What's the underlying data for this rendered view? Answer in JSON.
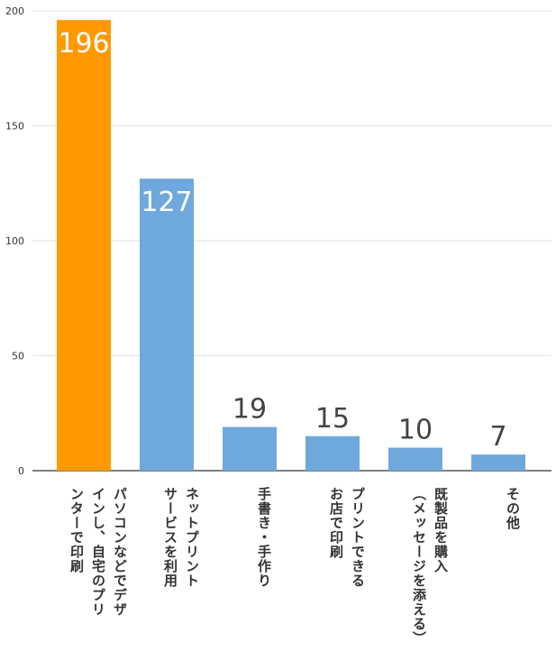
{
  "chart_data": {
    "type": "bar",
    "categories": [
      [
        "パソコンなどでデザ",
        "インし、自宅のプリ",
        "ンターで印刷"
      ],
      [
        "ネットプリント",
        "サービスを利用"
      ],
      [
        "手書き・手作り"
      ],
      [
        "プリントできる",
        "お店で印刷"
      ],
      [
        "既製品を購入",
        "（メッセージを添える）"
      ],
      [
        "その他"
      ]
    ],
    "values": [
      196,
      127,
      19,
      15,
      10,
      7
    ],
    "ylim": [
      0,
      200
    ],
    "yticks": [
      0,
      50,
      100,
      150,
      200
    ],
    "grid": true,
    "colors": [
      "#ff9900",
      "#6fa8dc",
      "#6fa8dc",
      "#6fa8dc",
      "#6fa8dc",
      "#6fa8dc"
    ]
  }
}
